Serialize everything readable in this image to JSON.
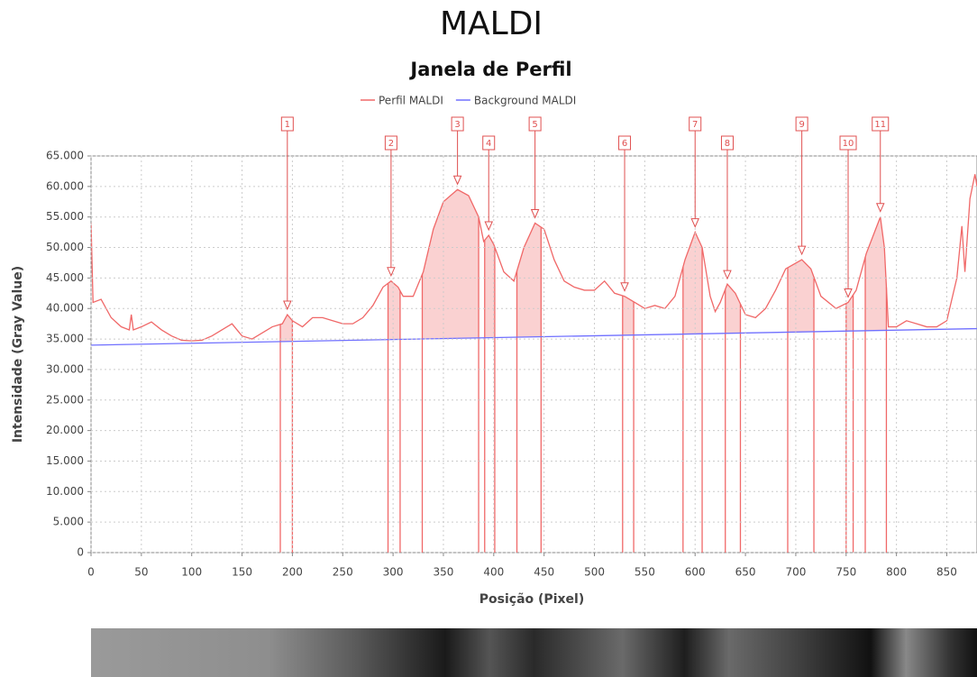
{
  "title": "MALDI",
  "chart_data": {
    "type": "line",
    "title": "Janela de Perfil",
    "xlabel": "Posição (Pixel)",
    "ylabel": "Intensidade (Gray Value)",
    "xlim": [
      0,
      880
    ],
    "ylim": [
      0,
      65000
    ],
    "xticks": [
      0,
      50,
      100,
      150,
      200,
      250,
      300,
      350,
      400,
      450,
      500,
      550,
      600,
      650,
      700,
      750,
      800,
      850
    ],
    "yticks": [
      0,
      {
        "value": 5000,
        "label": "5.000"
      },
      {
        "value": 10000,
        "label": "10.000"
      },
      {
        "value": 15000,
        "label": "15.000"
      },
      {
        "value": 20000,
        "label": "20.000"
      },
      {
        "value": 25000,
        "label": "25.000"
      },
      {
        "value": 30000,
        "label": "30.000"
      },
      {
        "value": 35000,
        "label": "35.000"
      },
      {
        "value": 40000,
        "label": "40.000"
      },
      {
        "value": 45000,
        "label": "45.000"
      },
      {
        "value": 50000,
        "label": "50.000"
      },
      {
        "value": 55000,
        "label": "55.000"
      },
      {
        "value": 60000,
        "label": "60.000"
      },
      {
        "value": 65000,
        "label": "65.000"
      }
    ],
    "grid": true,
    "series": [
      {
        "name": "Perfil MALDI",
        "color": "#f06868",
        "x": [
          0,
          2,
          10,
          20,
          30,
          38,
          40,
          42,
          50,
          60,
          70,
          80,
          90,
          100,
          110,
          120,
          130,
          140,
          150,
          160,
          170,
          180,
          190,
          195,
          200,
          210,
          220,
          230,
          240,
          250,
          260,
          270,
          280,
          290,
          298,
          305,
          310,
          320,
          330,
          340,
          350,
          364,
          375,
          385,
          390,
          395,
          400,
          410,
          420,
          430,
          441,
          450,
          460,
          470,
          480,
          490,
          500,
          510,
          520,
          530,
          540,
          550,
          560,
          570,
          580,
          590,
          600,
          607,
          615,
          620,
          625,
          632,
          640,
          650,
          660,
          670,
          680,
          690,
          706,
          715,
          725,
          740,
          752,
          760,
          770,
          784,
          788,
          792,
          800,
          810,
          820,
          830,
          840,
          850,
          860,
          865,
          868,
          873,
          878,
          880
        ],
        "values": [
          54000,
          41000,
          41500,
          38500,
          37000,
          36500,
          39000,
          36500,
          37000,
          37800,
          36500,
          35500,
          34800,
          34700,
          34800,
          35500,
          36500,
          37500,
          35500,
          35000,
          36000,
          37000,
          37500,
          39000,
          38000,
          37000,
          38500,
          38500,
          38000,
          37500,
          37500,
          38500,
          40500,
          43500,
          44500,
          43500,
          42000,
          42000,
          46000,
          53000,
          57500,
          59500,
          58500,
          55000,
          51000,
          52000,
          50500,
          46000,
          44500,
          50000,
          54000,
          53000,
          48000,
          44500,
          43500,
          43000,
          43000,
          44500,
          42500,
          42000,
          41000,
          40000,
          40500,
          40000,
          42000,
          48000,
          52500,
          50000,
          42000,
          39500,
          41000,
          44000,
          42500,
          39000,
          38500,
          40000,
          43000,
          46500,
          48000,
          46500,
          42000,
          40000,
          41000,
          43000,
          49000,
          55000,
          50000,
          37000,
          37000,
          38000,
          37500,
          37000,
          37000,
          38000,
          45000,
          53500,
          46000,
          58000,
          62000,
          60000
        ]
      },
      {
        "name": "Background MALDI",
        "color": "#7070ff",
        "x": [
          0,
          880
        ],
        "values": [
          34000,
          36700
        ]
      }
    ],
    "peaks": [
      {
        "label": "1",
        "x": 195,
        "y": 39000,
        "start": 188,
        "end": 200
      },
      {
        "label": "2",
        "x": 298,
        "y": 44500,
        "start": 295,
        "end": 307
      },
      {
        "label": "3",
        "x": 364,
        "y": 59500,
        "start": 329,
        "end": 385
      },
      {
        "label": "4",
        "x": 395,
        "y": 52000,
        "start": 391,
        "end": 401
      },
      {
        "label": "5",
        "x": 441,
        "y": 54000,
        "start": 423,
        "end": 447
      },
      {
        "label": "6",
        "x": 530,
        "y": 42000,
        "start": 528,
        "end": 539
      },
      {
        "label": "7",
        "x": 600,
        "y": 52500,
        "start": 588,
        "end": 607
      },
      {
        "label": "8",
        "x": 632,
        "y": 44000,
        "start": 630,
        "end": 645
      },
      {
        "label": "9",
        "x": 706,
        "y": 48000,
        "start": 692,
        "end": 718
      },
      {
        "label": "10",
        "x": 752,
        "y": 41000,
        "start": 750,
        "end": 757
      },
      {
        "label": "11",
        "x": 784,
        "y": 55000,
        "start": 769,
        "end": 790
      }
    ]
  }
}
